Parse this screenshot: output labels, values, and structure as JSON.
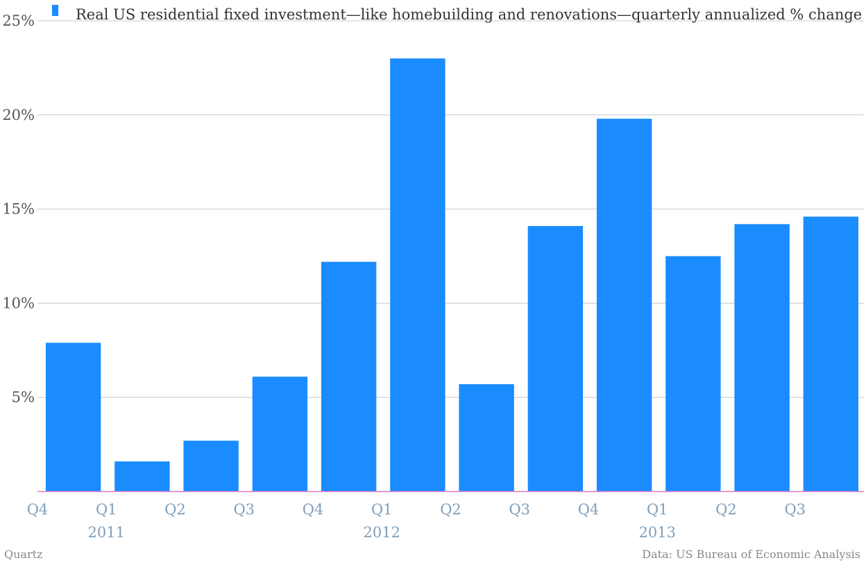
{
  "chart_data": {
    "type": "bar",
    "title": "",
    "xlabel": "",
    "ylabel": "",
    "series": [
      {
        "name": "Real US residential fixed investment—like homebuilding and renovations—quarterly annualized % change",
        "values": [
          7.9,
          1.6,
          2.7,
          6.1,
          12.2,
          23.0,
          5.7,
          14.1,
          19.8,
          12.5,
          14.2,
          14.6
        ]
      }
    ],
    "categories": [
      "Q4 2010",
      "Q1 2011",
      "Q2 2011",
      "Q3 2011",
      "Q4 2011",
      "Q1 2012",
      "Q2 2012",
      "Q3 2012",
      "Q4 2012",
      "Q1 2013",
      "Q2 2013",
      "Q3 2013"
    ],
    "x_tick_labels": [
      "Q4",
      "Q1",
      "Q2",
      "Q3",
      "Q4",
      "Q1",
      "Q2",
      "Q3",
      "Q4",
      "Q1",
      "Q2",
      "Q3"
    ],
    "year_labels": [
      "2011",
      "2012",
      "2013"
    ],
    "y_ticks": [
      "5%",
      "10%",
      "15%",
      "20%",
      "25%"
    ],
    "ylim": [
      0,
      25
    ],
    "grid": true,
    "legend_position": "top",
    "bar_color": "#1a8cff",
    "baseline_color": "#e377c2"
  },
  "footer": {
    "brand": "Quartz",
    "source": "Data: US Bureau of Economic Analysis"
  }
}
